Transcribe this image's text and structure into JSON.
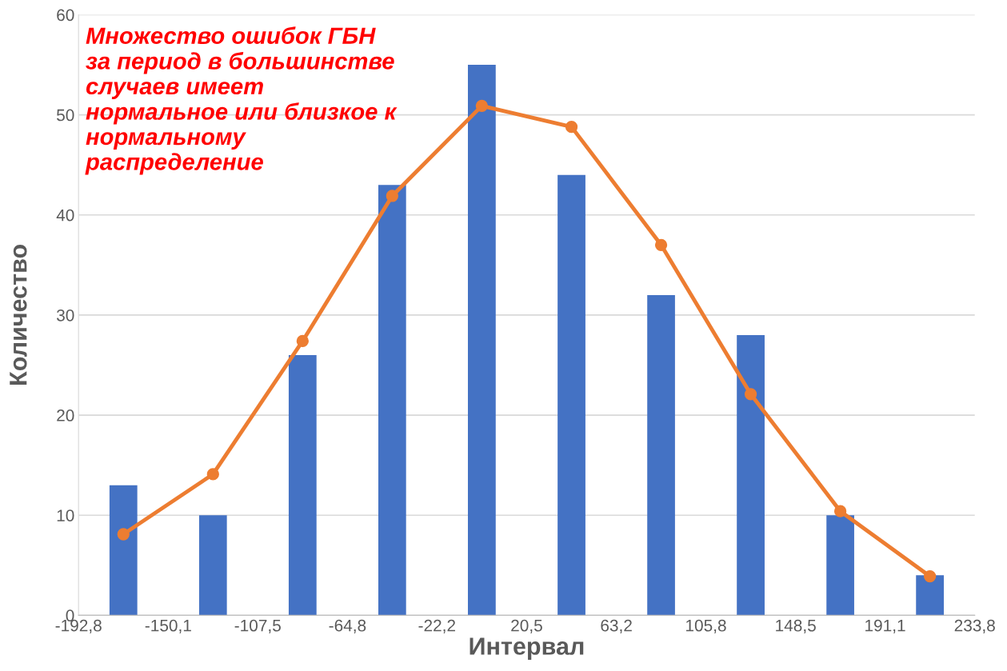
{
  "chart_data": {
    "type": "histogram",
    "xlabel": "Интервал",
    "ylabel": "Количество",
    "bins": [
      -192.8,
      -150.1,
      -107.5,
      -64.8,
      -22.2,
      20.5,
      63.2,
      105.8,
      148.5,
      191.1,
      233.8
    ],
    "values": [
      13,
      10,
      26,
      43,
      55,
      44,
      32,
      28,
      10,
      4
    ],
    "color": "#4472c4",
    "series": [
      {
        "type": "line",
        "color": "#ed7d31",
        "x": [
          -171.45,
          -128.8,
          -86.15,
          -43.5,
          -0.85,
          41.85,
          84.5,
          127.15,
          169.8,
          212.45
        ],
        "values": [
          8.1,
          14.1,
          27.4,
          41.9,
          50.9,
          48.8,
          37,
          22.1,
          10.4,
          3.9
        ]
      }
    ],
    "marker": "circle",
    "line_style": "solid",
    "xlim": [
      -192.8,
      233.8
    ],
    "xticks": [
      {
        "value": -192.8,
        "label": "-192,8"
      },
      {
        "value": -150.1,
        "label": "-150,1"
      },
      {
        "value": -107.5,
        "label": "-107,5"
      },
      {
        "value": -64.8,
        "label": "-64,8"
      },
      {
        "value": -22.2,
        "label": "-22,2"
      },
      {
        "value": 20.5,
        "label": "20,5"
      },
      {
        "value": 63.2,
        "label": "63,2"
      },
      {
        "value": 105.8,
        "label": "105,8"
      },
      {
        "value": 148.5,
        "label": "148,5"
      },
      {
        "value": 191.1,
        "label": "191,1"
      },
      {
        "value": 233.8,
        "label": "233,8"
      }
    ],
    "ylim": [
      0,
      60
    ],
    "yticks": [
      0,
      10,
      20,
      30,
      40,
      50,
      60
    ],
    "grid": "y",
    "legend": false,
    "annotations": [
      "Множество ошибок ГБН\nза период в большинстве\nслучаев имеет\nнормальное или близкое к\nнормальному\nраспределение"
    ]
  }
}
